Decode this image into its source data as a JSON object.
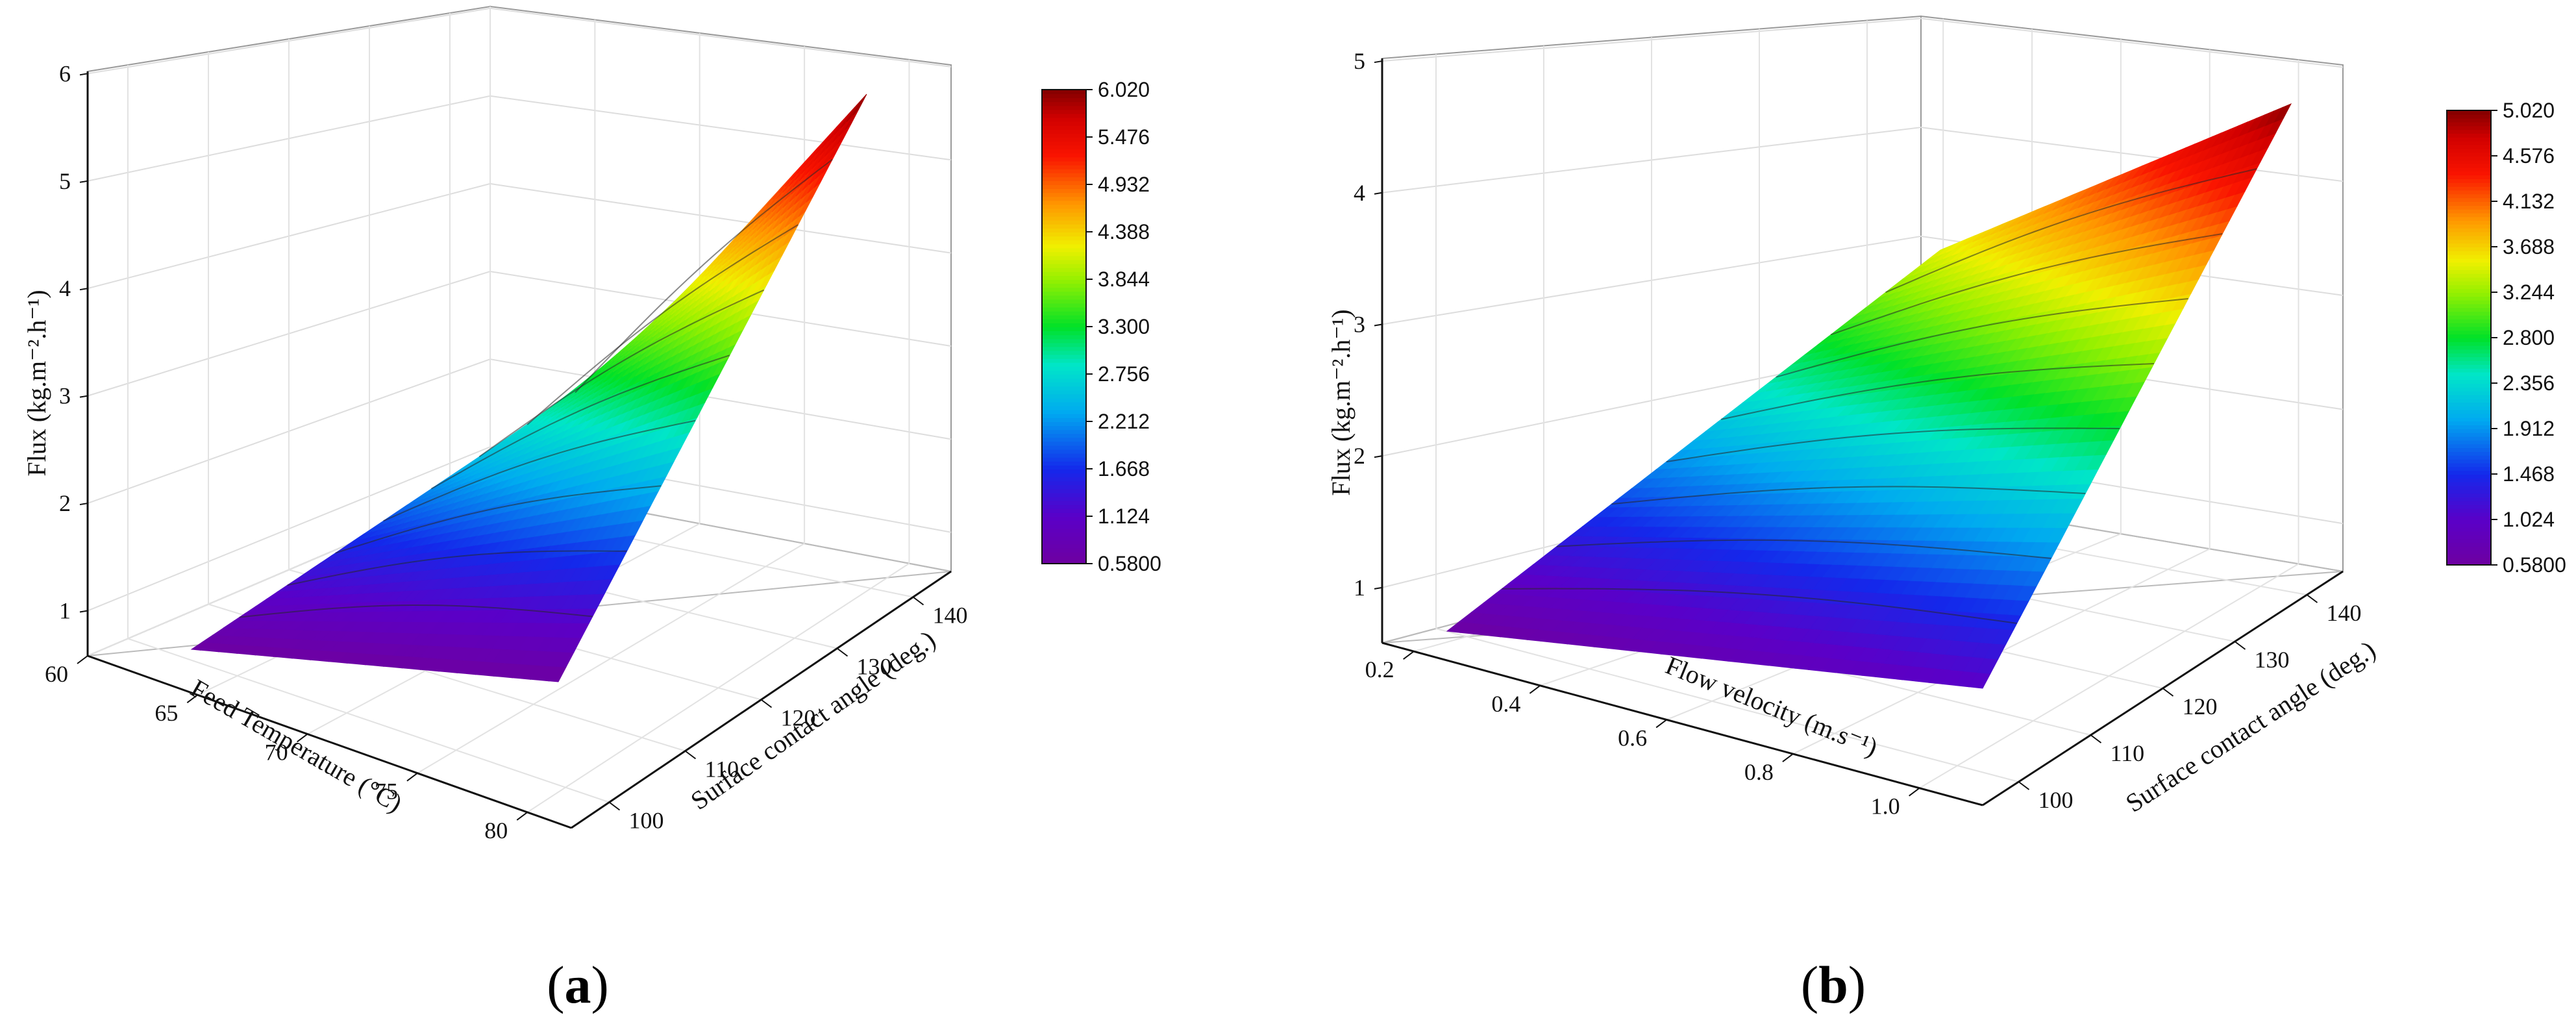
{
  "chart_data": [
    {
      "type": "surface3d",
      "panel_label": "a",
      "zlabel": "Flux (kg.m⁻².h⁻¹)",
      "xlabel": "Feed Temperature (°C)",
      "ylabel": "Surface contact angle (deg.)",
      "x_ticks": [
        "60",
        "65",
        "70",
        "75",
        "80"
      ],
      "y_ticks": [
        "100",
        "110",
        "120",
        "130",
        "140"
      ],
      "z_ticks": [
        "1",
        "2",
        "3",
        "4",
        "5",
        "6"
      ],
      "xlim": [
        60,
        82
      ],
      "ylim": [
        95,
        145
      ],
      "zlim": [
        0.58,
        6.02
      ],
      "colorbar_ticks": [
        "6.020",
        "5.476",
        "4.932",
        "4.388",
        "3.844",
        "3.300",
        "2.756",
        "2.212",
        "1.668",
        "1.124",
        "0.5800"
      ],
      "colorbar_range": [
        0.58,
        6.02
      ],
      "surface_corners": [
        {
          "x": 60,
          "y": 95,
          "z": 0.6
        },
        {
          "x": 82,
          "y": 95,
          "z": 0.6
        },
        {
          "x": 60,
          "y": 145,
          "z": 3.4
        },
        {
          "x": 82,
          "y": 145,
          "z": 6.0
        }
      ],
      "grid": true
    },
    {
      "type": "surface3d",
      "panel_label": "b",
      "zlabel": "Flux (kg.m⁻².h⁻¹)",
      "xlabel": "Flow velocity (m.s⁻¹)",
      "ylabel": "Surface contact angle (deg.)",
      "x_ticks": [
        "0.2",
        "0.4",
        "0.6",
        "0.8",
        "1.0"
      ],
      "y_ticks": [
        "100",
        "110",
        "120",
        "130",
        "140"
      ],
      "z_ticks": [
        "1",
        "2",
        "3",
        "4",
        "5"
      ],
      "xlim": [
        0.15,
        1.1
      ],
      "ylim": [
        95,
        145
      ],
      "zlim": [
        0.58,
        5.02
      ],
      "colorbar_ticks": [
        "5.020",
        "4.576",
        "4.132",
        "3.688",
        "3.244",
        "2.800",
        "2.356",
        "1.912",
        "1.468",
        "1.024",
        "0.5800"
      ],
      "colorbar_range": [
        0.58,
        5.02
      ],
      "surface_corners": [
        {
          "x": 0.15,
          "y": 95,
          "z": 0.6
        },
        {
          "x": 1.1,
          "y": 95,
          "z": 1.0
        },
        {
          "x": 0.15,
          "y": 145,
          "z": 3.5
        },
        {
          "x": 1.1,
          "y": 145,
          "z": 5.0
        }
      ],
      "grid": true
    }
  ]
}
